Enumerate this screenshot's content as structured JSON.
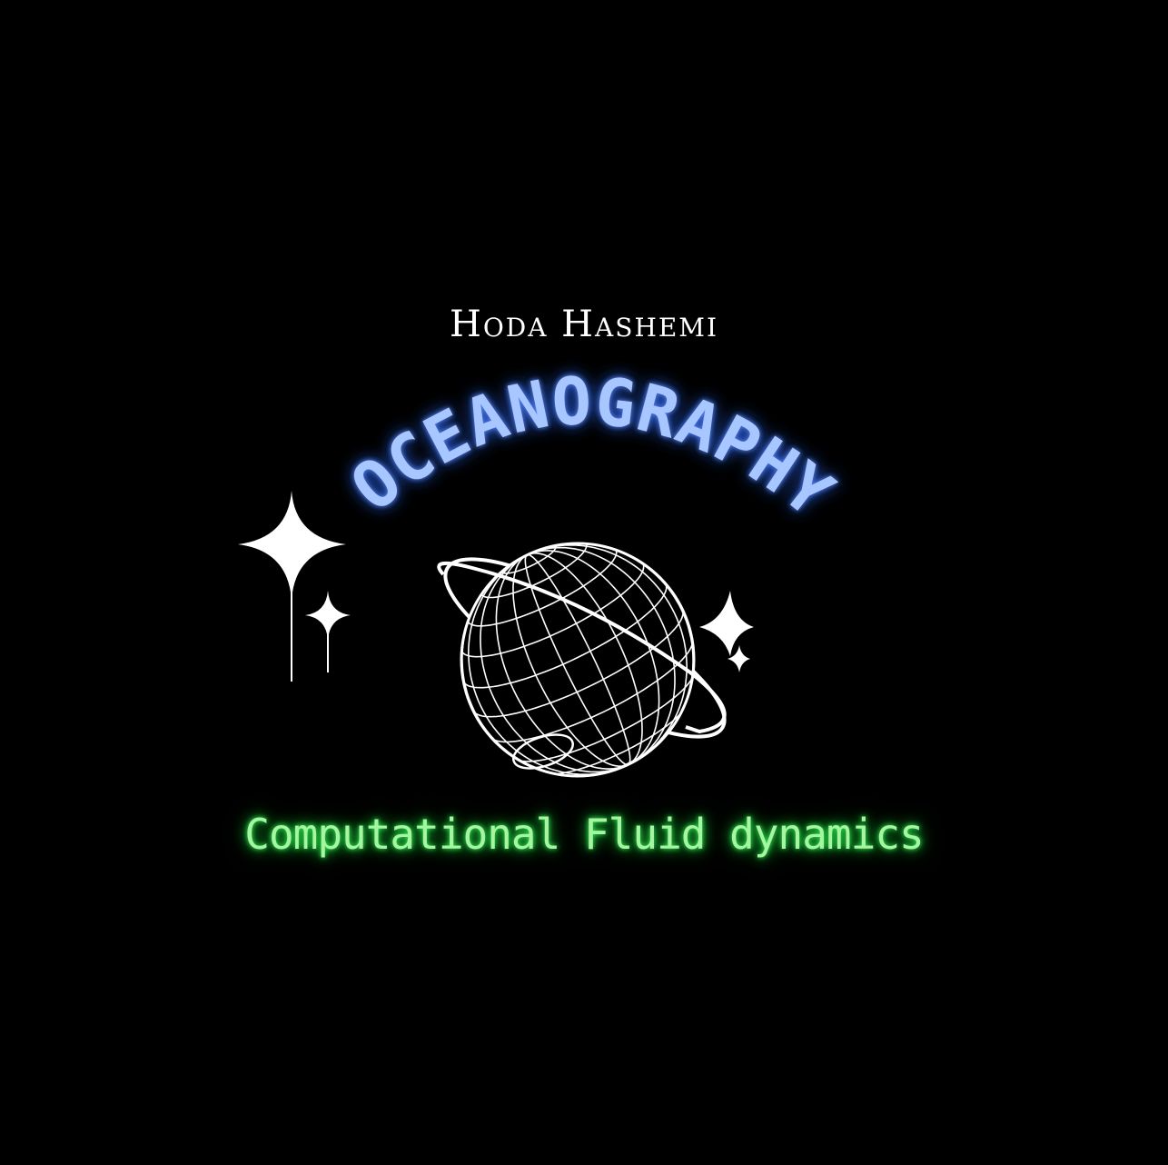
{
  "author": "Hoda Hashemi",
  "title": "OCEANOGRAPHY",
  "subtitle": "Computational Fluid dynamics",
  "colors": {
    "background": "#000000",
    "title_fill": "#a8c6ff",
    "title_glow": "#2f6bff",
    "subtitle_fill": "#a6f5a0",
    "subtitle_glow": "#34ff5c",
    "line_art": "#ffffff"
  },
  "icons": [
    "globe-wireframe-icon",
    "planet-ring-icon",
    "sparkle-icon"
  ]
}
